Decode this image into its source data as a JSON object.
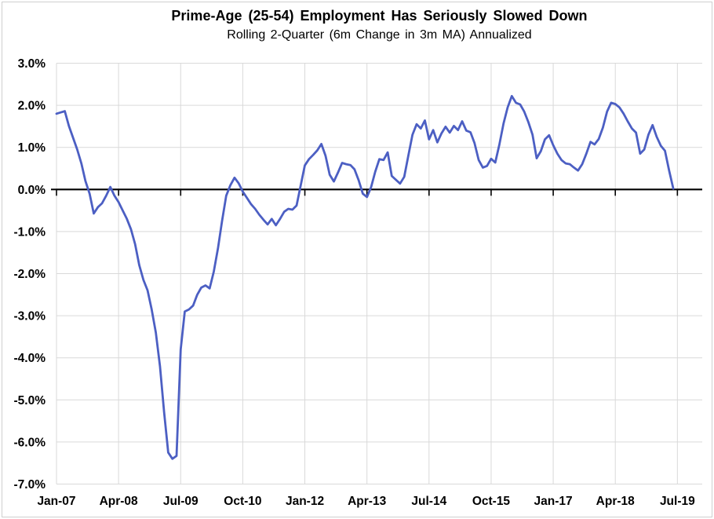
{
  "header": {
    "title": "Prime-Age (25-54) Employment Has Seriously Slowed Down",
    "subtitle": "Rolling 2-Quarter (6m Change in 3m MA) Annualized"
  },
  "chart_data": {
    "type": "line",
    "title": "Prime-Age (25-54) Employment Has Seriously Slowed Down",
    "subtitle": "Rolling 2-Quarter (6m Change in 3m MA) Annualized",
    "x_unit": "month",
    "x_start": "Jan-2007",
    "x_end": "Jun-2019",
    "x_tick_labels": [
      "Jan-07",
      "Apr-08",
      "Jul-09",
      "Oct-10",
      "Jan-12",
      "Apr-13",
      "Jul-14",
      "Oct-15",
      "Jan-17",
      "Apr-18",
      "Jul-19"
    ],
    "x_tick_month_index": [
      0,
      15,
      30,
      45,
      60,
      75,
      90,
      105,
      120,
      135,
      150
    ],
    "x_axis_months_total": 156,
    "ylim": [
      -7,
      3
    ],
    "y_tick_step": 1,
    "y_tick_labels": [
      "3.0%",
      "2.0%",
      "1.0%",
      "0.0%",
      "-1.0%",
      "-2.0%",
      "-3.0%",
      "-4.0%",
      "-5.0%",
      "-6.0%",
      "-7.0%"
    ],
    "grid": true,
    "legend_position": "none",
    "gridline_color": "#d9d9d9",
    "axis_color": "#000000",
    "series": [
      {
        "color": "#4c5fc3",
        "values_pct": [
          1.8,
          1.83,
          1.86,
          1.51,
          1.23,
          0.95,
          0.62,
          0.2,
          -0.1,
          -0.57,
          -0.42,
          -0.33,
          -0.15,
          0.06,
          -0.15,
          -0.3,
          -0.5,
          -0.7,
          -0.95,
          -1.3,
          -1.8,
          -2.15,
          -2.4,
          -2.85,
          -3.4,
          -4.2,
          -5.3,
          -6.25,
          -6.4,
          -6.33,
          -3.8,
          -2.9,
          -2.85,
          -2.76,
          -2.5,
          -2.33,
          -2.28,
          -2.35,
          -1.95,
          -1.4,
          -0.75,
          -0.15,
          0.1,
          0.28,
          0.15,
          -0.05,
          -0.2,
          -0.35,
          -0.46,
          -0.6,
          -0.72,
          -0.83,
          -0.7,
          -0.85,
          -0.7,
          -0.53,
          -0.46,
          -0.48,
          -0.38,
          0.1,
          0.57,
          0.72,
          0.82,
          0.93,
          1.08,
          0.8,
          0.35,
          0.19,
          0.4,
          0.63,
          0.6,
          0.58,
          0.48,
          0.22,
          -0.1,
          -0.18,
          0.05,
          0.42,
          0.72,
          0.7,
          0.88,
          0.32,
          0.23,
          0.14,
          0.3,
          0.8,
          1.3,
          1.55,
          1.45,
          1.64,
          1.19,
          1.41,
          1.12,
          1.33,
          1.49,
          1.35,
          1.51,
          1.41,
          1.62,
          1.4,
          1.36,
          1.1,
          0.7,
          0.52,
          0.56,
          0.73,
          0.64,
          1.07,
          1.57,
          1.95,
          2.22,
          2.06,
          2.02,
          1.85,
          1.6,
          1.3,
          0.74,
          0.91,
          1.19,
          1.29,
          1.05,
          0.85,
          0.7,
          0.62,
          0.6,
          0.52,
          0.45,
          0.6,
          0.85,
          1.13,
          1.07,
          1.2,
          1.47,
          1.85,
          2.06,
          2.03,
          1.95,
          1.8,
          1.62,
          1.45,
          1.35,
          0.85,
          0.95,
          1.3,
          1.53,
          1.25,
          1.04,
          0.92,
          0.45,
          0.02
        ]
      }
    ]
  }
}
